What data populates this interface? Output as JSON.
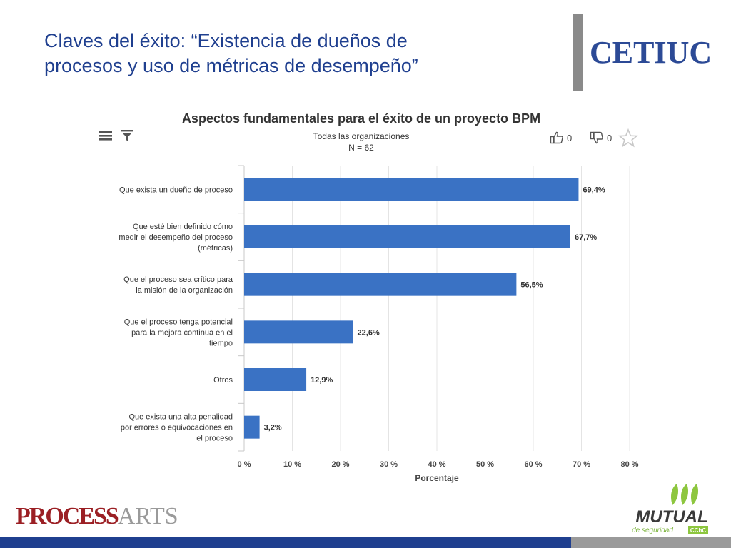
{
  "slide": {
    "title_line1": "Claves del éxito: “Existencia de dueños de",
    "title_line2": "procesos y uso de métricas de desempeño”"
  },
  "logos": {
    "cetiuc": "CETIUC",
    "processarts_part1": "PROCESS",
    "processarts_part2": "ARTS",
    "mutual_text": "MUTUAL",
    "mutual_subtext": "de seguridad",
    "mutual_badge": "CChC"
  },
  "toolbar": {
    "likes": "0",
    "dislikes": "0",
    "icons": [
      "menu-icon",
      "filter-icon",
      "thumbs-up-icon",
      "thumbs-down-icon",
      "star-icon"
    ]
  },
  "colors": {
    "bar": "#3a72c4",
    "title": "#1f3f8f",
    "footer": "#1f3f8f"
  },
  "chart_data": {
    "type": "bar",
    "orientation": "horizontal",
    "title": "Aspectos fundamentales para el éxito de un proyecto BPM",
    "subtitle_line1": "Todas las organizaciones",
    "subtitle_line2": "N = 62",
    "xlabel": "Porcentaje",
    "ylabel": "",
    "xlim": [
      0,
      80
    ],
    "xticks": [
      "0 %",
      "10 %",
      "20 %",
      "30 %",
      "40 %",
      "50 %",
      "60 %",
      "70 %",
      "80 %"
    ],
    "grid": true,
    "categories": [
      [
        "Que exista un dueño de proceso"
      ],
      [
        "Que esté bien definido cómo",
        "medir el desempeño del proceso",
        "(métricas)"
      ],
      [
        "Que el proceso sea crítico para",
        "la misión de la organización"
      ],
      [
        "Que el proceso tenga potencial",
        "para la mejora continua en el",
        "tiempo"
      ],
      [
        "Otros"
      ],
      [
        "Que exista una alta penalidad",
        "por errores o equivocaciones en",
        "el proceso"
      ]
    ],
    "values": [
      69.4,
      67.7,
      56.5,
      22.6,
      12.9,
      3.2
    ],
    "data_labels": [
      "69,4%",
      "67,7%",
      "56,5%",
      "22,6%",
      "12,9%",
      "3,2%"
    ]
  }
}
